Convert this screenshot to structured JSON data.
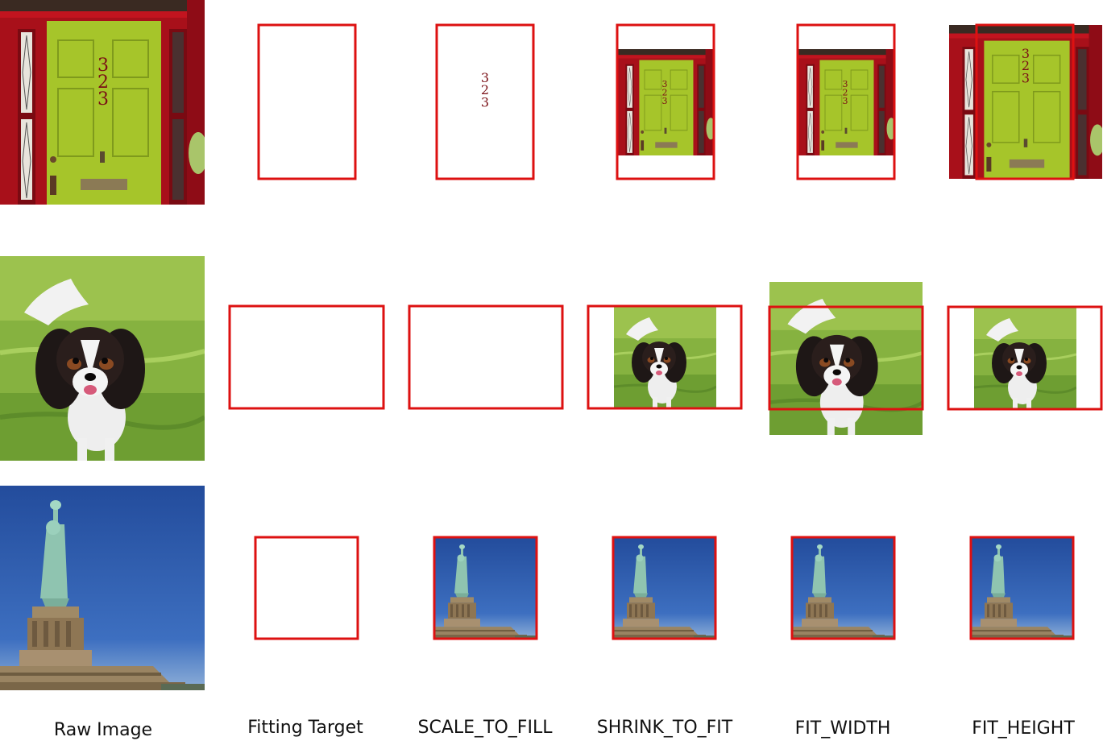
{
  "columns": [
    {
      "label": "Raw Image"
    },
    {
      "label": "Fitting Target"
    },
    {
      "label": "SCALE_TO_FILL"
    },
    {
      "label": "SHRINK_TO_FIT"
    },
    {
      "label": "FIT_WIDTH"
    },
    {
      "label": "FIT_HEIGHT"
    }
  ],
  "door_number": [
    "3",
    "2",
    "3"
  ],
  "colors": {
    "target_outline": "#dd1111",
    "door_frame": "#b0101c",
    "door_panel": "#a6c52a",
    "grass": "#7fae3a",
    "sky": "#2f5fb0",
    "statue": "#8fc4b0",
    "pedestal": "#a08a66"
  }
}
